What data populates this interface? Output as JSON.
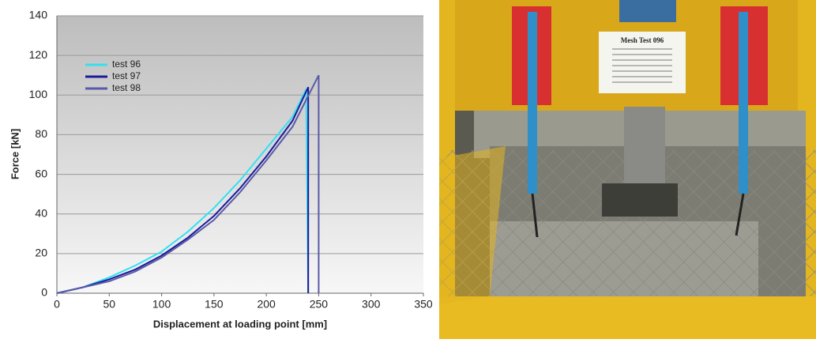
{
  "chart_data": {
    "type": "line",
    "xlabel": "Displacement at loading point [mm]",
    "ylabel": "Force [kN]",
    "xlim": [
      0,
      350
    ],
    "xticks": [
      0,
      50,
      100,
      150,
      200,
      250,
      300,
      350
    ],
    "ylim": [
      0,
      140
    ],
    "yticks": [
      0,
      20,
      40,
      60,
      80,
      100,
      120,
      140
    ],
    "grid": true,
    "legend": "upper left",
    "series": [
      {
        "name": "test 96",
        "color": "#33e0f0",
        "x": [
          0,
          25,
          50,
          75,
          100,
          125,
          150,
          175,
          200,
          225,
          238,
          240
        ],
        "values": [
          0,
          3,
          8,
          14,
          21,
          31,
          43,
          57,
          73,
          89,
          103,
          0
        ]
      },
      {
        "name": "test 97",
        "color": "#1a1a9a",
        "x": [
          0,
          25,
          50,
          75,
          100,
          125,
          150,
          175,
          200,
          225,
          240,
          240
        ],
        "values": [
          0,
          3,
          7,
          12,
          19,
          28,
          39,
          53,
          69,
          87,
          104,
          0
        ]
      },
      {
        "name": "test 98",
        "color": "#5a5aa8",
        "x": [
          0,
          25,
          50,
          75,
          100,
          125,
          150,
          175,
          200,
          225,
          250,
          250
        ],
        "values": [
          0,
          3,
          6,
          11,
          18,
          27,
          37,
          51,
          67,
          84,
          110,
          0
        ]
      }
    ]
  },
  "photo": {
    "sign_title": "Mesh Test 096"
  }
}
